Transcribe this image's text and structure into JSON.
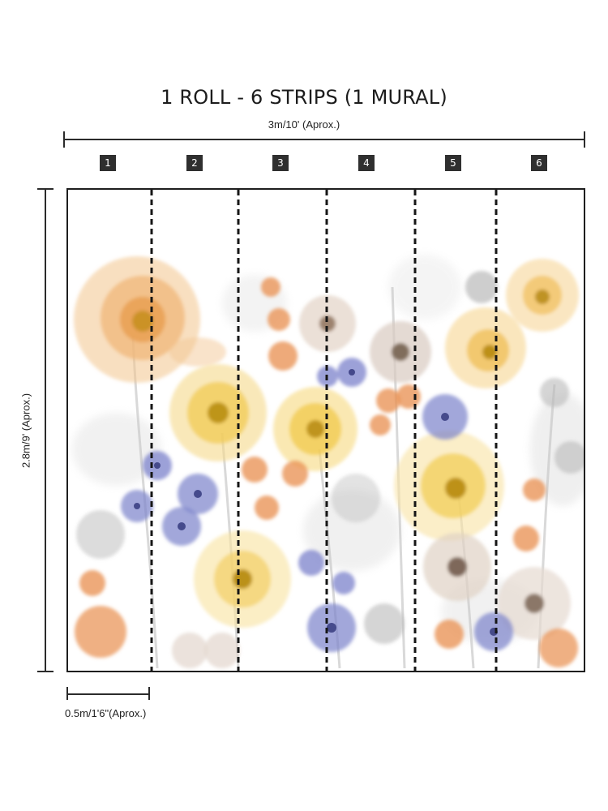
{
  "title": "1 ROLL - 6 STRIPS (1 MURAL)",
  "width_label": "3m/10' (Aprox.)",
  "height_label": "2.8m/9' (Aprox.)",
  "strip_width_label": "0.5m/1'6\"(Aprox.)",
  "strips": [
    "1",
    "2",
    "3",
    "4",
    "5",
    "6"
  ],
  "colors": {
    "badge": "#2f2f2f",
    "lines": "#2b2b2b",
    "peach": "#f0b97a",
    "yellow": "#f1cf5a",
    "blue": "#6f78c4",
    "orange": "#e8945a",
    "gray": "#bfbfbf",
    "beige": "#d9c7b8"
  }
}
